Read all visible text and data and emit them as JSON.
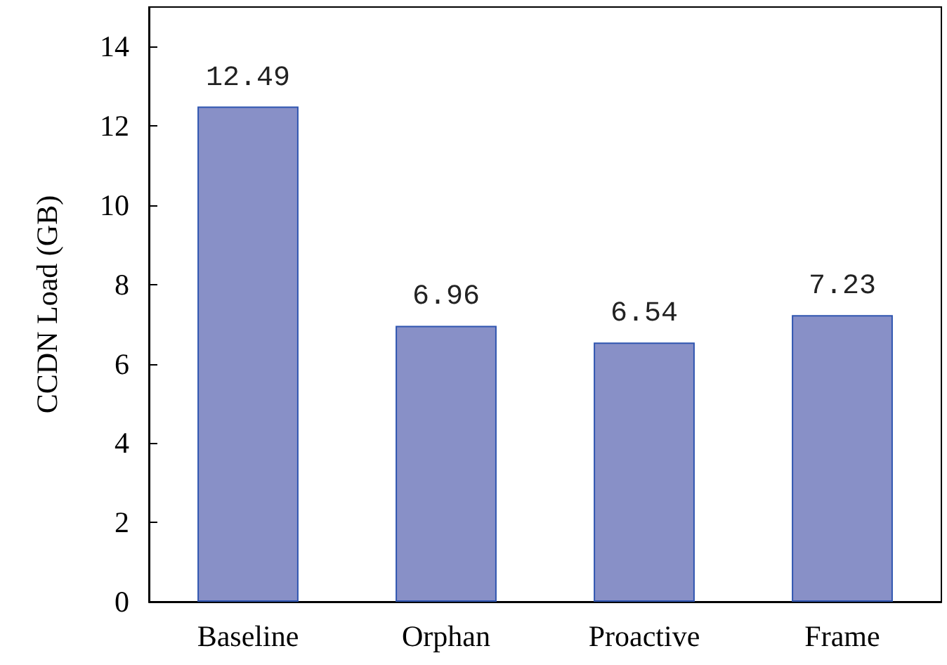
{
  "chart_data": {
    "type": "bar",
    "ylabel": "CCDN Load (GB)",
    "categories": [
      "Baseline",
      "Orphan",
      "Proactive",
      "Frame"
    ],
    "values": [
      12.49,
      6.96,
      6.54,
      7.23
    ],
    "color": "#8890c7",
    "ylim": [
      0,
      15
    ],
    "yticks": [
      0,
      2,
      4,
      6,
      8,
      10,
      12,
      14
    ],
    "grid": false,
    "data_labels": true
  }
}
